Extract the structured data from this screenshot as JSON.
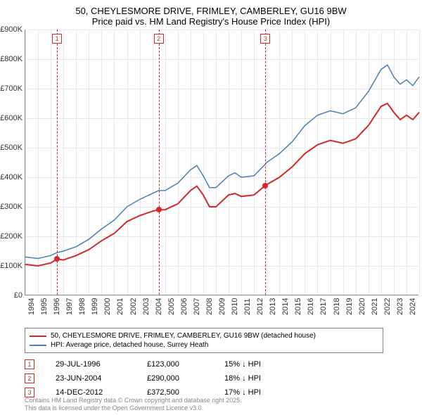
{
  "title": {
    "line1": "50, CHEYLESMORE DRIVE, FRIMLEY, CAMBERLEY, GU16 9BW",
    "line2": "Price paid vs. HM Land Registry's House Price Index (HPI)"
  },
  "chart": {
    "type": "line",
    "background_color": "#ffffff",
    "grid_color": "#e8e8e8",
    "axis_color": "#888888",
    "ylim": [
      0,
      900000
    ],
    "ytick_step": 100000,
    "y_ticks": [
      "£0",
      "£100K",
      "£200K",
      "£300K",
      "£400K",
      "£500K",
      "£600K",
      "£700K",
      "£800K",
      "£900K"
    ],
    "xlim": [
      1994,
      2025
    ],
    "x_ticks": [
      "1994",
      "1995",
      "1996",
      "1997",
      "1998",
      "1999",
      "2000",
      "2001",
      "2002",
      "2003",
      "2004",
      "2005",
      "2006",
      "2007",
      "2008",
      "2009",
      "2010",
      "2011",
      "2012",
      "2013",
      "2014",
      "2015",
      "2016",
      "2017",
      "2018",
      "2019",
      "2020",
      "2021",
      "2022",
      "2023",
      "2024",
      "2025"
    ],
    "series": [
      {
        "id": "price_paid",
        "color": "#d62728",
        "width": 2,
        "label": "50, CHEYLESMORE DRIVE, FRIMLEY, CAMBERLEY, GU16 9BW (detached house)",
        "points": [
          [
            1994,
            105000
          ],
          [
            1995,
            100000
          ],
          [
            1996,
            110000
          ],
          [
            1996.5,
            123000
          ],
          [
            1997,
            120000
          ],
          [
            1998,
            135000
          ],
          [
            1999,
            155000
          ],
          [
            2000,
            185000
          ],
          [
            2001,
            210000
          ],
          [
            2002,
            250000
          ],
          [
            2003,
            270000
          ],
          [
            2004,
            285000
          ],
          [
            2004.5,
            290000
          ],
          [
            2005,
            290000
          ],
          [
            2006,
            310000
          ],
          [
            2007,
            355000
          ],
          [
            2007.5,
            370000
          ],
          [
            2008,
            340000
          ],
          [
            2008.5,
            300000
          ],
          [
            2009,
            300000
          ],
          [
            2010,
            340000
          ],
          [
            2010.5,
            345000
          ],
          [
            2011,
            335000
          ],
          [
            2012,
            340000
          ],
          [
            2012.9,
            372500
          ],
          [
            2013,
            375000
          ],
          [
            2014,
            400000
          ],
          [
            2015,
            435000
          ],
          [
            2016,
            480000
          ],
          [
            2017,
            510000
          ],
          [
            2018,
            525000
          ],
          [
            2019,
            515000
          ],
          [
            2020,
            530000
          ],
          [
            2021,
            575000
          ],
          [
            2022,
            640000
          ],
          [
            2022.5,
            650000
          ],
          [
            2023,
            620000
          ],
          [
            2023.5,
            595000
          ],
          [
            2024,
            610000
          ],
          [
            2024.5,
            595000
          ],
          [
            2025,
            620000
          ]
        ]
      },
      {
        "id": "hpi",
        "color": "#4a7ebb",
        "width": 1.5,
        "label": "HPI: Average price, detached house, Surrey Heath",
        "points": [
          [
            1994,
            130000
          ],
          [
            1995,
            125000
          ],
          [
            1996,
            135000
          ],
          [
            1996.5,
            145000
          ],
          [
            1997,
            150000
          ],
          [
            1998,
            165000
          ],
          [
            1999,
            190000
          ],
          [
            2000,
            225000
          ],
          [
            2001,
            255000
          ],
          [
            2002,
            300000
          ],
          [
            2003,
            325000
          ],
          [
            2004,
            345000
          ],
          [
            2004.5,
            355000
          ],
          [
            2005,
            355000
          ],
          [
            2006,
            380000
          ],
          [
            2007,
            425000
          ],
          [
            2007.5,
            440000
          ],
          [
            2008,
            405000
          ],
          [
            2008.5,
            365000
          ],
          [
            2009,
            365000
          ],
          [
            2010,
            405000
          ],
          [
            2010.5,
            415000
          ],
          [
            2011,
            400000
          ],
          [
            2012,
            405000
          ],
          [
            2012.9,
            445000
          ],
          [
            2013,
            450000
          ],
          [
            2014,
            480000
          ],
          [
            2015,
            520000
          ],
          [
            2016,
            575000
          ],
          [
            2017,
            610000
          ],
          [
            2018,
            625000
          ],
          [
            2019,
            615000
          ],
          [
            2020,
            635000
          ],
          [
            2021,
            690000
          ],
          [
            2022,
            765000
          ],
          [
            2022.5,
            780000
          ],
          [
            2023,
            740000
          ],
          [
            2023.5,
            715000
          ],
          [
            2024,
            730000
          ],
          [
            2024.5,
            710000
          ],
          [
            2025,
            740000
          ]
        ]
      }
    ],
    "markers": [
      {
        "num": "1",
        "x": 1996.5,
        "y": 123000
      },
      {
        "num": "2",
        "x": 2004.5,
        "y": 290000
      },
      {
        "num": "3",
        "x": 2012.9,
        "y": 372500
      }
    ]
  },
  "legend": {
    "items": [
      {
        "color": "#d62728",
        "label": "50, CHEYLESMORE DRIVE, FRIMLEY, CAMBERLEY, GU16 9BW (detached house)"
      },
      {
        "color": "#4a7ebb",
        "label": "HPI: Average price, detached house, Surrey Heath"
      }
    ]
  },
  "sales": [
    {
      "num": "1",
      "date": "29-JUL-1996",
      "price": "£123,000",
      "hpi": "15% ↓ HPI"
    },
    {
      "num": "2",
      "date": "23-JUN-2004",
      "price": "£290,000",
      "hpi": "18% ↓ HPI"
    },
    {
      "num": "3",
      "date": "14-DEC-2012",
      "price": "£372,500",
      "hpi": "17% ↓ HPI"
    }
  ],
  "footer": {
    "line1": "Contains HM Land Registry data © Crown copyright and database right 2025.",
    "line2": "This data is licensed under the Open Government Licence v3.0."
  }
}
